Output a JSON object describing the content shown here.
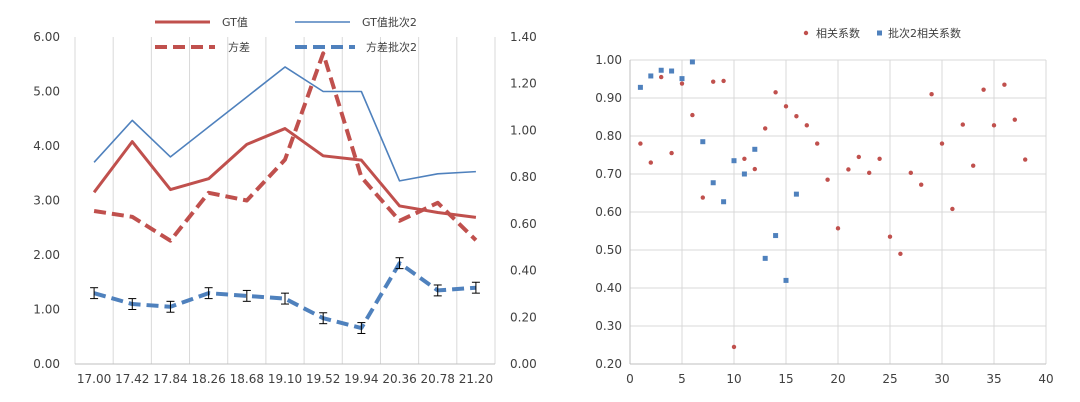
{
  "colors": {
    "red": "#c0504d",
    "blue": "#4f81bd",
    "grid": "#d9d9d9",
    "axis": "#bfbfbf"
  },
  "chart_data": [
    {
      "type": "line",
      "x_categories": [
        "17.00",
        "17.42",
        "17.84",
        "18.26",
        "18.68",
        "19.10",
        "19.52",
        "19.94",
        "20.36",
        "20.78",
        "21.20"
      ],
      "y_left_ticks": [
        "0.00",
        "1.00",
        "2.00",
        "3.00",
        "4.00",
        "5.00",
        "6.00"
      ],
      "y_right_ticks": [
        "0.00",
        "0.20",
        "0.40",
        "0.60",
        "0.80",
        "1.00",
        "1.20",
        "1.40"
      ],
      "ylim_left": [
        0,
        6
      ],
      "ylim_right": [
        0,
        1.4
      ],
      "legend": {
        "gt": "GT值",
        "gt2": "GT值批次2",
        "var": "方差",
        "var2": "方差批次2"
      },
      "series": [
        {
          "key": "gt",
          "name": "GT值",
          "axis": "left",
          "style": "solid",
          "color": "#c0504d",
          "x": [
            17.0,
            17.42,
            17.84,
            18.26,
            18.68,
            19.1,
            19.52,
            19.94,
            20.36,
            20.78,
            21.2
          ],
          "values": [
            3.15,
            4.08,
            3.2,
            3.4,
            4.03,
            4.32,
            3.82,
            3.74,
            2.9,
            2.78,
            2.69
          ]
        },
        {
          "key": "gt2",
          "name": "GT值批次2",
          "axis": "left",
          "style": "solid-thin",
          "color": "#4f81bd",
          "x": [
            17.0,
            17.42,
            17.84,
            18.26,
            18.68,
            19.1,
            19.52,
            19.94,
            20.36,
            20.78,
            21.2
          ],
          "values": [
            3.7,
            4.47,
            3.8,
            4.35,
            4.9,
            5.45,
            5.0,
            5.0,
            3.36,
            3.49,
            3.53
          ]
        },
        {
          "key": "var",
          "name": "方差",
          "axis": "right",
          "style": "dashed",
          "color": "#c0504d",
          "x": [
            17.0,
            17.42,
            17.84,
            18.26,
            18.68,
            19.1,
            19.52,
            19.94,
            20.36,
            20.78,
            21.2
          ],
          "values": [
            0.655,
            0.63,
            0.528,
            0.733,
            0.7,
            0.875,
            1.33,
            0.8,
            0.613,
            0.69,
            0.53
          ]
        },
        {
          "key": "var2",
          "name": "方差批次2",
          "axis": "left",
          "style": "dashed",
          "color": "#4f81bd",
          "x": [
            17.0,
            17.42,
            17.84,
            18.26,
            18.68,
            19.1,
            19.52,
            19.94,
            20.36,
            20.78,
            21.2
          ],
          "values": [
            1.3,
            1.1,
            1.05,
            1.3,
            1.25,
            1.2,
            0.84,
            0.66,
            1.85,
            1.35,
            1.4
          ],
          "errors": [
            0.1,
            0.1,
            0.1,
            0.1,
            0.1,
            0.1,
            0.1,
            0.1,
            0.1,
            0.1,
            0.1
          ]
        }
      ]
    },
    {
      "type": "scatter",
      "xlim": [
        0,
        40
      ],
      "ylim": [
        0.2,
        1.0
      ],
      "x_ticks": [
        "0",
        "5",
        "10",
        "15",
        "20",
        "25",
        "30",
        "35",
        "40"
      ],
      "y_ticks": [
        "0.20",
        "0.30",
        "0.40",
        "0.50",
        "0.60",
        "0.70",
        "0.80",
        "0.90",
        "1.00"
      ],
      "legend": {
        "s1": "相关系数",
        "s2": "批次2相关系数"
      },
      "series": [
        {
          "key": "s1",
          "name": "相关系数",
          "marker": "circle",
          "color": "#c0504d",
          "x": [
            1,
            2,
            3,
            4,
            5,
            6,
            7,
            8,
            9,
            10,
            11,
            12,
            13,
            14,
            15,
            16,
            17,
            18,
            19,
            20,
            21,
            22,
            23,
            24,
            25,
            26,
            27,
            28,
            29,
            30,
            31,
            32,
            33,
            34,
            35,
            36,
            37,
            38
          ],
          "y": [
            0.78,
            0.73,
            0.955,
            0.755,
            0.938,
            0.855,
            0.638,
            0.943,
            0.945,
            0.245,
            0.74,
            0.713,
            0.82,
            0.915,
            0.878,
            0.852,
            0.828,
            0.78,
            0.685,
            0.557,
            0.712,
            0.745,
            0.703,
            0.74,
            0.535,
            0.49,
            0.703,
            0.672,
            0.91,
            0.78,
            0.608,
            0.83,
            0.722,
            0.922,
            0.828,
            0.935,
            0.843,
            0.738
          ]
        },
        {
          "key": "s2",
          "name": "批次2相关系数",
          "marker": "square",
          "color": "#4f81bd",
          "x": [
            1,
            2,
            3,
            4,
            5,
            6,
            7,
            8,
            9,
            10,
            11,
            12,
            13,
            14,
            15,
            16
          ],
          "y": [
            0.928,
            0.958,
            0.973,
            0.971,
            0.951,
            0.995,
            0.785,
            0.677,
            0.627,
            0.735,
            0.7,
            0.765,
            0.478,
            0.538,
            0.42,
            0.647
          ]
        }
      ]
    }
  ]
}
